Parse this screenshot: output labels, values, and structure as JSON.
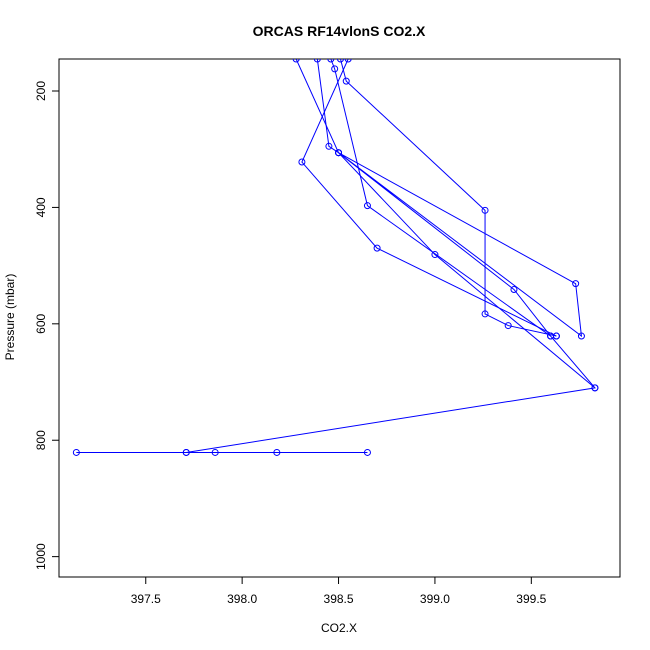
{
  "chart_data": {
    "type": "line",
    "title": "ORCAS RF14vlonS CO2.X",
    "xlabel": "CO2.X",
    "ylabel": "Pressure (mbar)",
    "xlim": [
      397.05,
      399.96
    ],
    "ylim": [
      1035,
      145
    ],
    "y_reversed": true,
    "x_ticks": [
      397.5,
      398.0,
      398.5,
      399.0,
      399.5
    ],
    "x_tick_labels": [
      "397.5",
      "398.0",
      "398.5",
      "399.0",
      "399.5"
    ],
    "y_ticks": [
      200,
      400,
      600,
      800,
      1000
    ],
    "y_tick_labels": [
      "200",
      "400",
      "600",
      "800",
      "1000"
    ],
    "grid": false,
    "legend": "none",
    "colors": {
      "series": "#0000ff",
      "axes": "#000000"
    },
    "series": [
      {
        "points": [
          {
            "x": 398.65,
            "y": 821
          },
          {
            "x": 398.18,
            "y": 821
          },
          {
            "x": 397.86,
            "y": 821
          },
          {
            "x": 397.71,
            "y": 821
          },
          {
            "x": 397.14,
            "y": 821
          },
          {
            "x": 397.71,
            "y": 821
          },
          {
            "x": 399.83,
            "y": 710
          },
          {
            "x": 399.6,
            "y": 621
          },
          {
            "x": 399.41,
            "y": 541
          },
          {
            "x": 398.5,
            "y": 306
          },
          {
            "x": 399.76,
            "y": 621
          },
          {
            "x": 399.73,
            "y": 531
          },
          {
            "x": 398.5,
            "y": 306
          },
          {
            "x": 398.45,
            "y": 295
          },
          {
            "x": 398.39,
            "y": 145
          }
        ]
      },
      {
        "points": [
          {
            "x": 399.63,
            "y": 621
          },
          {
            "x": 398.7,
            "y": 470
          },
          {
            "x": 398.31,
            "y": 322
          },
          {
            "x": 398.55,
            "y": 145
          }
        ]
      },
      {
        "points": [
          {
            "x": 399.6,
            "y": 621
          },
          {
            "x": 398.65,
            "y": 397
          },
          {
            "x": 398.48,
            "y": 162
          },
          {
            "x": 398.46,
            "y": 145
          }
        ]
      },
      {
        "points": [
          {
            "x": 399.63,
            "y": 621
          },
          {
            "x": 399.38,
            "y": 603
          },
          {
            "x": 399.26,
            "y": 583
          },
          {
            "x": 399.26,
            "y": 405
          },
          {
            "x": 398.54,
            "y": 183
          },
          {
            "x": 398.51,
            "y": 145
          }
        ]
      },
      {
        "points": [
          {
            "x": 399.83,
            "y": 710
          },
          {
            "x": 399.0,
            "y": 481
          },
          {
            "x": 398.5,
            "y": 306
          },
          {
            "x": 398.28,
            "y": 145
          }
        ]
      }
    ]
  }
}
